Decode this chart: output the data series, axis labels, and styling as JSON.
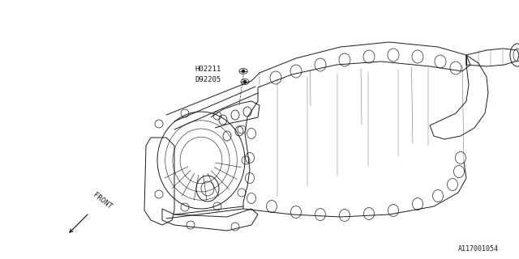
{
  "bg_color": "#ffffff",
  "line_color": "#1a1a1a",
  "line_width": 0.7,
  "label1": "H02211",
  "label2": "D92205",
  "front_label": "FRONT",
  "diagram_id": "A117001054",
  "title_fontsize": 6.5,
  "diagram_id_fontsize": 6,
  "front_fontsize": 6.5
}
